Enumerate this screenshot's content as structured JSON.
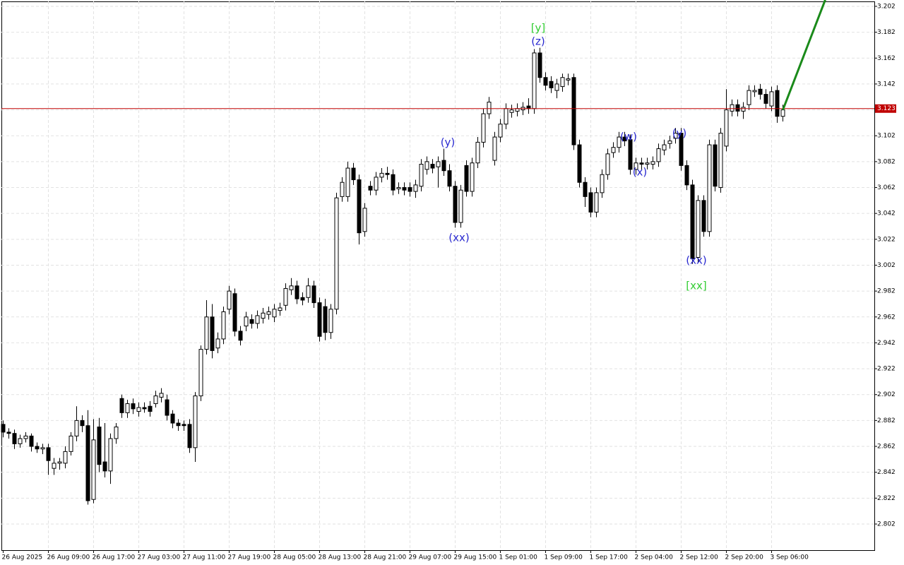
{
  "chart_data": {
    "type": "candlestick",
    "bull_color": "#ffffff",
    "bear_color": "#000000",
    "grid": true,
    "ylim": [
      2.7818,
      3.2058
    ],
    "yticks": [
      2.802,
      2.822,
      2.842,
      2.862,
      2.882,
      2.902,
      2.922,
      2.942,
      2.962,
      2.982,
      3.002,
      3.022,
      3.042,
      3.062,
      3.082,
      3.102,
      3.122,
      3.142,
      3.162,
      3.182,
      3.202
    ],
    "categories": [
      "26 Aug 2025",
      null,
      null,
      null,
      null,
      null,
      null,
      null,
      "26 Aug 09:00",
      null,
      null,
      null,
      null,
      null,
      null,
      null,
      "26 Aug 17:00",
      null,
      null,
      null,
      null,
      null,
      null,
      null,
      "27 Aug 03:00",
      null,
      null,
      null,
      null,
      null,
      null,
      null,
      "27 Aug 11:00",
      null,
      null,
      null,
      null,
      null,
      null,
      null,
      "27 Aug 19:00",
      null,
      null,
      null,
      null,
      null,
      null,
      null,
      "28 Aug 05:00",
      null,
      null,
      null,
      null,
      null,
      null,
      null,
      "28 Aug 13:00",
      null,
      null,
      null,
      null,
      null,
      null,
      null,
      "28 Aug 21:00",
      null,
      null,
      null,
      null,
      null,
      null,
      null,
      "29 Aug 07:00",
      null,
      null,
      null,
      null,
      null,
      null,
      null,
      "29 Aug 15:00",
      null,
      null,
      null,
      null,
      null,
      null,
      null,
      "1 Sep 01:00",
      null,
      null,
      null,
      null,
      null,
      null,
      null,
      "1 Sep 09:00",
      null,
      null,
      null,
      null,
      null,
      null,
      null,
      "1 Sep 17:00",
      null,
      null,
      null,
      null,
      null,
      null,
      null,
      "2 Sep 04:00",
      null,
      null,
      null,
      null,
      null,
      null,
      null,
      "2 Sep 12:00",
      null,
      null,
      null,
      null,
      null,
      null,
      null,
      "2 Sep 20:00",
      null,
      null,
      null,
      null,
      null,
      null,
      null,
      "3 Sep 06:00",
      null,
      null
    ],
    "ohlc": [
      [
        2.879,
        2.882,
        2.869,
        2.873
      ],
      [
        2.873,
        2.876,
        2.868,
        2.872
      ],
      [
        2.872,
        2.875,
        2.86,
        2.864
      ],
      [
        2.864,
        2.871,
        2.861,
        2.868
      ],
      [
        2.868,
        2.873,
        2.865,
        2.87
      ],
      [
        2.87,
        2.872,
        2.858,
        2.862
      ],
      [
        2.862,
        2.865,
        2.857,
        2.86
      ],
      [
        2.86,
        2.864,
        2.856,
        2.861
      ],
      [
        2.861,
        2.864,
        2.84,
        2.851
      ],
      [
        2.845,
        2.853,
        2.84,
        2.849
      ],
      [
        2.849,
        2.853,
        2.844,
        2.85
      ],
      [
        2.849,
        2.862,
        2.845,
        2.858
      ],
      [
        2.858,
        2.873,
        2.855,
        2.87
      ],
      [
        2.87,
        2.893,
        2.866,
        2.882
      ],
      [
        2.882,
        2.886,
        2.873,
        2.878
      ],
      [
        2.878,
        2.89,
        2.817,
        2.82
      ],
      [
        2.821,
        2.883,
        2.818,
        2.867
      ],
      [
        2.877,
        2.884,
        2.842,
        2.848
      ],
      [
        2.85,
        2.88,
        2.838,
        2.843
      ],
      [
        2.843,
        2.872,
        2.833,
        2.868
      ],
      [
        2.868,
        2.88,
        2.864,
        2.877
      ],
      [
        2.899,
        2.902,
        2.884,
        2.888
      ],
      [
        2.888,
        2.898,
        2.884,
        2.895
      ],
      [
        2.895,
        2.899,
        2.887,
        2.891
      ],
      [
        2.889,
        2.896,
        2.885,
        2.892
      ],
      [
        2.892,
        2.896,
        2.888,
        2.891
      ],
      [
        2.893,
        2.897,
        2.885,
        2.889
      ],
      [
        2.895,
        2.905,
        2.892,
        2.901
      ],
      [
        2.9,
        2.907,
        2.896,
        2.903
      ],
      [
        2.898,
        2.902,
        2.882,
        2.886
      ],
      [
        2.887,
        2.89,
        2.876,
        2.88
      ],
      [
        2.88,
        2.883,
        2.874,
        2.878
      ],
      [
        2.879,
        2.882,
        2.874,
        2.878
      ],
      [
        2.879,
        2.883,
        2.857,
        2.861
      ],
      [
        2.861,
        2.904,
        2.85,
        2.901
      ],
      [
        2.901,
        2.94,
        2.897,
        2.937
      ],
      [
        2.937,
        2.975,
        2.933,
        2.962
      ],
      [
        2.962,
        2.972,
        2.93,
        2.936
      ],
      [
        2.938,
        2.95,
        2.934,
        2.945
      ],
      [
        2.945,
        2.97,
        2.941,
        2.966
      ],
      [
        2.968,
        2.986,
        2.964,
        2.982
      ],
      [
        2.98,
        2.984,
        2.947,
        2.951
      ],
      [
        2.951,
        2.955,
        2.94,
        2.944
      ],
      [
        2.955,
        2.966,
        2.951,
        2.962
      ],
      [
        2.96,
        2.964,
        2.953,
        2.957
      ],
      [
        2.957,
        2.967,
        2.953,
        2.963
      ],
      [
        2.961,
        2.969,
        2.957,
        2.965
      ],
      [
        2.964,
        2.97,
        2.96,
        2.966
      ],
      [
        2.962,
        2.972,
        2.958,
        2.968
      ],
      [
        2.967,
        2.973,
        2.963,
        2.969
      ],
      [
        2.971,
        2.988,
        2.967,
        2.984
      ],
      [
        2.983,
        2.992,
        2.979,
        2.986
      ],
      [
        2.986,
        2.99,
        2.972,
        2.976
      ],
      [
        2.977,
        2.981,
        2.971,
        2.975
      ],
      [
        2.977,
        2.992,
        2.973,
        2.986
      ],
      [
        2.986,
        2.99,
        2.969,
        2.973
      ],
      [
        2.973,
        2.977,
        2.943,
        2.947
      ],
      [
        2.97,
        2.976,
        2.944,
        2.95
      ],
      [
        2.95,
        2.972,
        2.945,
        2.968
      ],
      [
        2.968,
        3.058,
        2.964,
        3.054
      ],
      [
        3.055,
        3.07,
        3.051,
        3.066
      ],
      [
        3.055,
        3.082,
        3.051,
        3.077
      ],
      [
        3.077,
        3.081,
        3.064,
        3.068
      ],
      [
        3.068,
        3.072,
        3.018,
        3.027
      ],
      [
        3.028,
        3.05,
        3.024,
        3.046
      ],
      [
        3.063,
        3.067,
        3.056,
        3.06
      ],
      [
        3.06,
        3.074,
        3.056,
        3.07
      ],
      [
        3.07,
        3.077,
        3.066,
        3.073
      ],
      [
        3.073,
        3.078,
        3.068,
        3.072
      ],
      [
        3.072,
        3.076,
        3.056,
        3.06
      ],
      [
        3.061,
        3.066,
        3.057,
        3.062
      ],
      [
        3.062,
        3.066,
        3.056,
        3.06
      ],
      [
        3.062,
        3.066,
        3.055,
        3.059
      ],
      [
        3.059,
        3.068,
        3.054,
        3.064
      ],
      [
        3.063,
        3.084,
        3.059,
        3.08
      ],
      [
        3.076,
        3.086,
        3.072,
        3.082
      ],
      [
        3.08,
        3.084,
        3.073,
        3.077
      ],
      [
        3.078,
        3.086,
        3.062,
        3.082
      ],
      [
        3.083,
        3.092,
        3.071,
        3.075
      ],
      [
        3.075,
        3.08,
        3.059,
        3.063
      ],
      [
        3.063,
        3.067,
        3.031,
        3.035
      ],
      [
        3.035,
        3.064,
        3.031,
        3.06
      ],
      [
        3.079,
        3.083,
        3.055,
        3.059
      ],
      [
        3.059,
        3.085,
        3.055,
        3.081
      ],
      [
        3.081,
        3.101,
        3.077,
        3.097
      ],
      [
        3.097,
        3.123,
        3.093,
        3.119
      ],
      [
        3.119,
        3.132,
        3.115,
        3.128
      ],
      [
        3.083,
        3.105,
        3.079,
        3.101
      ],
      [
        3.101,
        3.115,
        3.097,
        3.111
      ],
      [
        3.111,
        3.127,
        3.107,
        3.123
      ],
      [
        3.12,
        3.126,
        3.116,
        3.122
      ],
      [
        3.121,
        3.127,
        3.117,
        3.123
      ],
      [
        3.122,
        3.128,
        3.118,
        3.124
      ],
      [
        3.125,
        3.131,
        3.119,
        3.123
      ],
      [
        3.123,
        3.169,
        3.119,
        3.166
      ],
      [
        3.166,
        3.17,
        3.143,
        3.147
      ],
      [
        3.147,
        3.151,
        3.137,
        3.141
      ],
      [
        3.144,
        3.148,
        3.135,
        3.139
      ],
      [
        3.137,
        3.146,
        3.131,
        3.142
      ],
      [
        3.14,
        3.15,
        3.136,
        3.147
      ],
      [
        3.145,
        3.15,
        3.141,
        3.146
      ],
      [
        3.147,
        3.15,
        3.091,
        3.095
      ],
      [
        3.095,
        3.099,
        3.062,
        3.066
      ],
      [
        3.066,
        3.07,
        3.047,
        3.055
      ],
      [
        3.058,
        3.062,
        3.039,
        3.043
      ],
      [
        3.043,
        3.062,
        3.039,
        3.058
      ],
      [
        3.058,
        3.076,
        3.054,
        3.072
      ],
      [
        3.072,
        3.092,
        3.068,
        3.088
      ],
      [
        3.089,
        3.097,
        3.085,
        3.093
      ],
      [
        3.093,
        3.105,
        3.089,
        3.101
      ],
      [
        3.101,
        3.105,
        3.094,
        3.098
      ],
      [
        3.099,
        3.103,
        3.072,
        3.076
      ],
      [
        3.076,
        3.085,
        3.072,
        3.081
      ],
      [
        3.081,
        3.085,
        3.076,
        3.08
      ],
      [
        3.08,
        3.085,
        3.076,
        3.081
      ],
      [
        3.08,
        3.086,
        3.076,
        3.082
      ],
      [
        3.082,
        3.096,
        3.078,
        3.092
      ],
      [
        3.091,
        3.099,
        3.087,
        3.095
      ],
      [
        3.096,
        3.102,
        3.092,
        3.098
      ],
      [
        3.1,
        3.108,
        3.096,
        3.104
      ],
      [
        3.104,
        3.108,
        3.075,
        3.079
      ],
      [
        3.079,
        3.083,
        3.06,
        3.064
      ],
      [
        3.064,
        3.068,
        3.003,
        3.007
      ],
      [
        3.008,
        3.056,
        3.004,
        3.052
      ],
      [
        3.052,
        3.056,
        3.024,
        3.028
      ],
      [
        3.028,
        3.099,
        3.024,
        3.095
      ],
      [
        3.095,
        3.099,
        3.059,
        3.063
      ],
      [
        3.062,
        3.108,
        3.058,
        3.104
      ],
      [
        3.094,
        3.138,
        3.09,
        3.122
      ],
      [
        3.121,
        3.13,
        3.117,
        3.126
      ],
      [
        3.126,
        3.13,
        3.117,
        3.121
      ],
      [
        3.121,
        3.128,
        3.115,
        3.124
      ],
      [
        3.126,
        3.141,
        3.122,
        3.137
      ],
      [
        3.136,
        3.141,
        3.132,
        3.137
      ],
      [
        3.138,
        3.142,
        3.13,
        3.134
      ],
      [
        3.134,
        3.138,
        3.123,
        3.127
      ],
      [
        3.125,
        3.14,
        3.121,
        3.136
      ],
      [
        3.137,
        3.141,
        3.112,
        3.117
      ],
      [
        3.117,
        3.126,
        3.113,
        3.122
      ]
    ],
    "current_price": 3.123,
    "current_price_color": "#c00000",
    "projection": {
      "color": "#1a8a1a",
      "x": [
        138,
        145.5
      ],
      "values": [
        3.122,
        3.207
      ]
    },
    "annotations": [
      {
        "text": "[y]",
        "color": "#32cd32"
      },
      {
        "text": "(z)",
        "color": "#2a2ad0"
      },
      {
        "text": "(y)",
        "color": "#2a2ad0"
      },
      {
        "text": "(xx)",
        "color": "#2a2ad0"
      },
      {
        "text": "(w)",
        "color": "#2a2ad0"
      },
      {
        "text": "(x)",
        "color": "#2a2ad0"
      },
      {
        "text": "(y)",
        "color": "#2a2ad0"
      },
      {
        "text": "(xx)",
        "color": "#2a2ad0"
      },
      {
        "text": "[xx]",
        "color": "#32cd32"
      }
    ]
  }
}
